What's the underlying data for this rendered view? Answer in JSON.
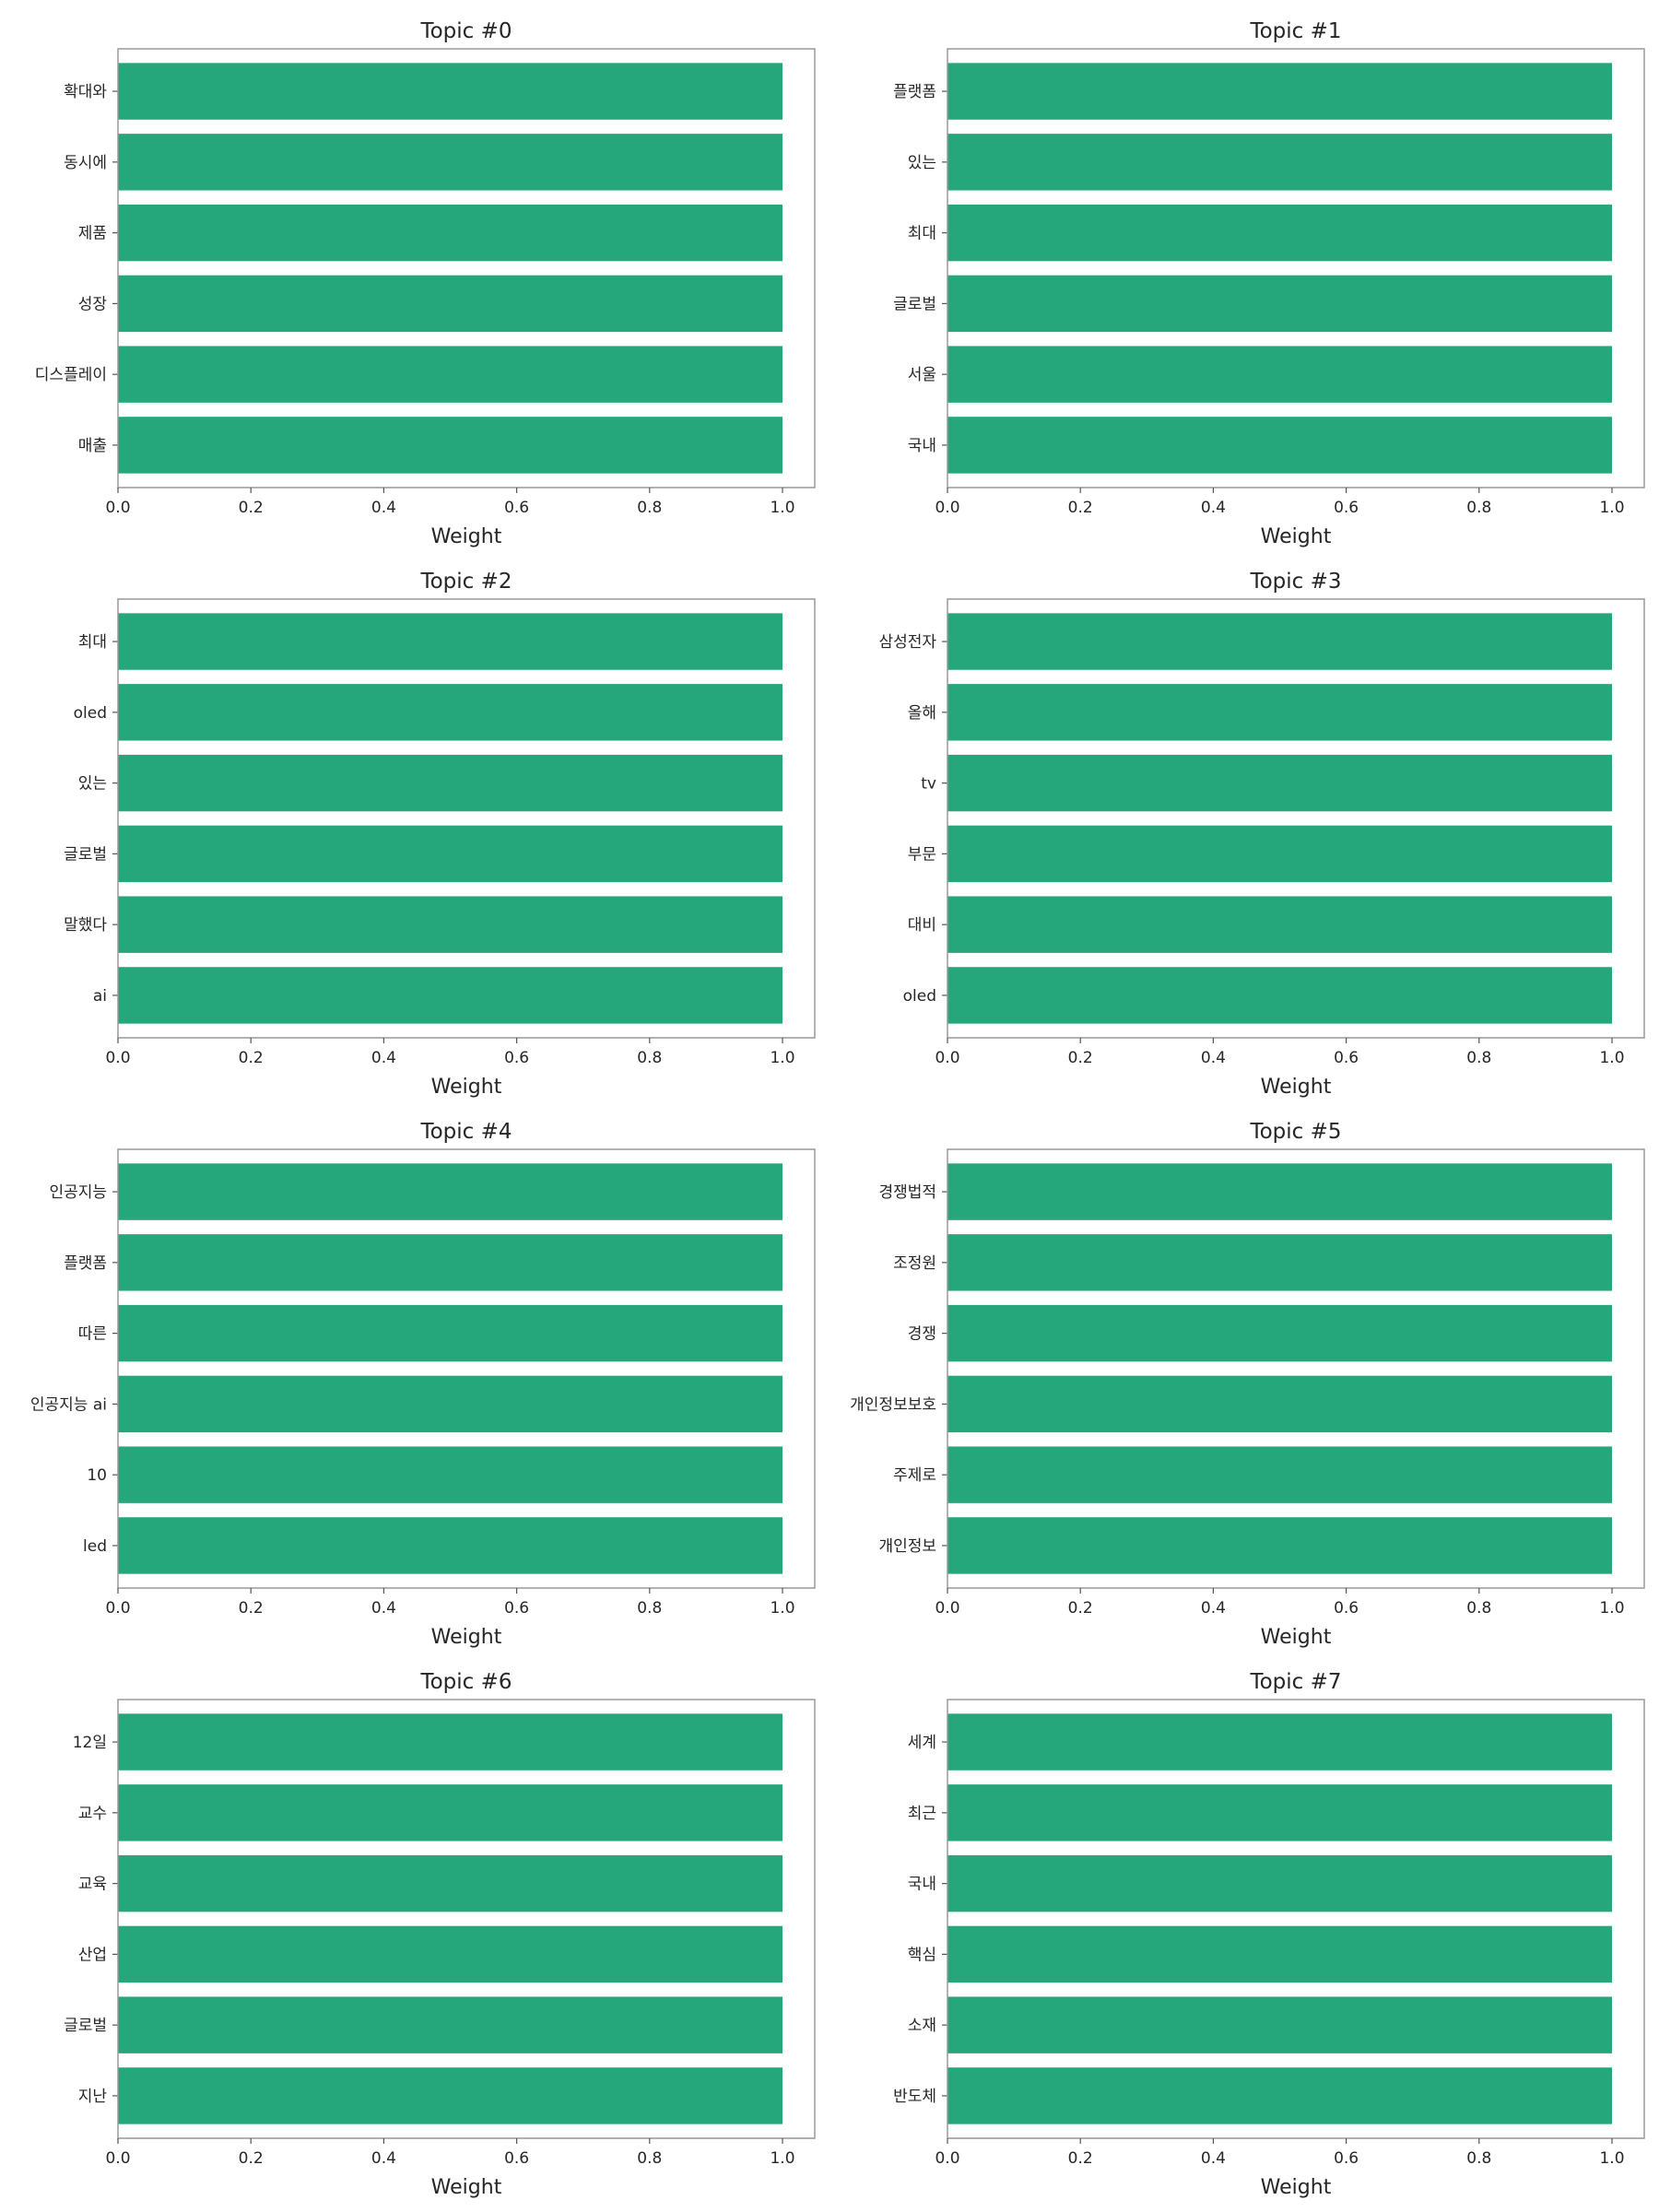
{
  "bar_color": "#26A67B",
  "frame_color": "#999999",
  "x_ticks": [
    "0.0",
    "0.2",
    "0.4",
    "0.6",
    "0.8",
    "1.0"
  ],
  "chart_data": [
    {
      "type": "bar",
      "orientation": "horizontal",
      "title": "Topic #0",
      "xlabel": "Weight",
      "ylabel": "",
      "xlim": [
        0,
        1.05
      ],
      "grid": false,
      "categories": [
        "확대와",
        "동시에",
        "제품",
        "성장",
        "디스플레이",
        "매출"
      ],
      "values": [
        1.0,
        1.0,
        1.0,
        1.0,
        1.0,
        1.0
      ]
    },
    {
      "type": "bar",
      "orientation": "horizontal",
      "title": "Topic #1",
      "xlabel": "Weight",
      "ylabel": "",
      "xlim": [
        0,
        1.05
      ],
      "grid": false,
      "categories": [
        "플랫폼",
        "있는",
        "최대",
        "글로벌",
        "서울",
        "국내"
      ],
      "values": [
        1.0,
        1.0,
        1.0,
        1.0,
        1.0,
        1.0
      ]
    },
    {
      "type": "bar",
      "orientation": "horizontal",
      "title": "Topic #2",
      "xlabel": "Weight",
      "ylabel": "",
      "xlim": [
        0,
        1.05
      ],
      "grid": false,
      "categories": [
        "최대",
        "oled",
        "있는",
        "글로벌",
        "말했다",
        "ai"
      ],
      "values": [
        1.0,
        1.0,
        1.0,
        1.0,
        1.0,
        1.0
      ]
    },
    {
      "type": "bar",
      "orientation": "horizontal",
      "title": "Topic #3",
      "xlabel": "Weight",
      "ylabel": "",
      "xlim": [
        0,
        1.05
      ],
      "grid": false,
      "categories": [
        "삼성전자",
        "올해",
        "tv",
        "부문",
        "대비",
        "oled"
      ],
      "values": [
        1.0,
        1.0,
        1.0,
        1.0,
        1.0,
        1.0
      ]
    },
    {
      "type": "bar",
      "orientation": "horizontal",
      "title": "Topic #4",
      "xlabel": "Weight",
      "ylabel": "",
      "xlim": [
        0,
        1.05
      ],
      "grid": false,
      "categories": [
        "인공지능",
        "플랫폼",
        "따른",
        "인공지능 ai",
        "10",
        "led"
      ],
      "values": [
        1.0,
        1.0,
        1.0,
        1.0,
        1.0,
        1.0
      ]
    },
    {
      "type": "bar",
      "orientation": "horizontal",
      "title": "Topic #5",
      "xlabel": "Weight",
      "ylabel": "",
      "xlim": [
        0,
        1.05
      ],
      "grid": false,
      "categories": [
        "경쟁법적",
        "조정원",
        "경쟁",
        "개인정보보호",
        "주제로",
        "개인정보"
      ],
      "values": [
        1.0,
        1.0,
        1.0,
        1.0,
        1.0,
        1.0
      ]
    },
    {
      "type": "bar",
      "orientation": "horizontal",
      "title": "Topic #6",
      "xlabel": "Weight",
      "ylabel": "",
      "xlim": [
        0,
        1.05
      ],
      "grid": false,
      "categories": [
        "12일",
        "교수",
        "교육",
        "산업",
        "글로벌",
        "지난"
      ],
      "values": [
        1.0,
        1.0,
        1.0,
        1.0,
        1.0,
        1.0
      ]
    },
    {
      "type": "bar",
      "orientation": "horizontal",
      "title": "Topic #7",
      "xlabel": "Weight",
      "ylabel": "",
      "xlim": [
        0,
        1.05
      ],
      "grid": false,
      "categories": [
        "세계",
        "최근",
        "국내",
        "핵심",
        "소재",
        "반도체"
      ],
      "values": [
        1.0,
        1.0,
        1.0,
        1.0,
        1.0,
        1.0
      ]
    }
  ]
}
